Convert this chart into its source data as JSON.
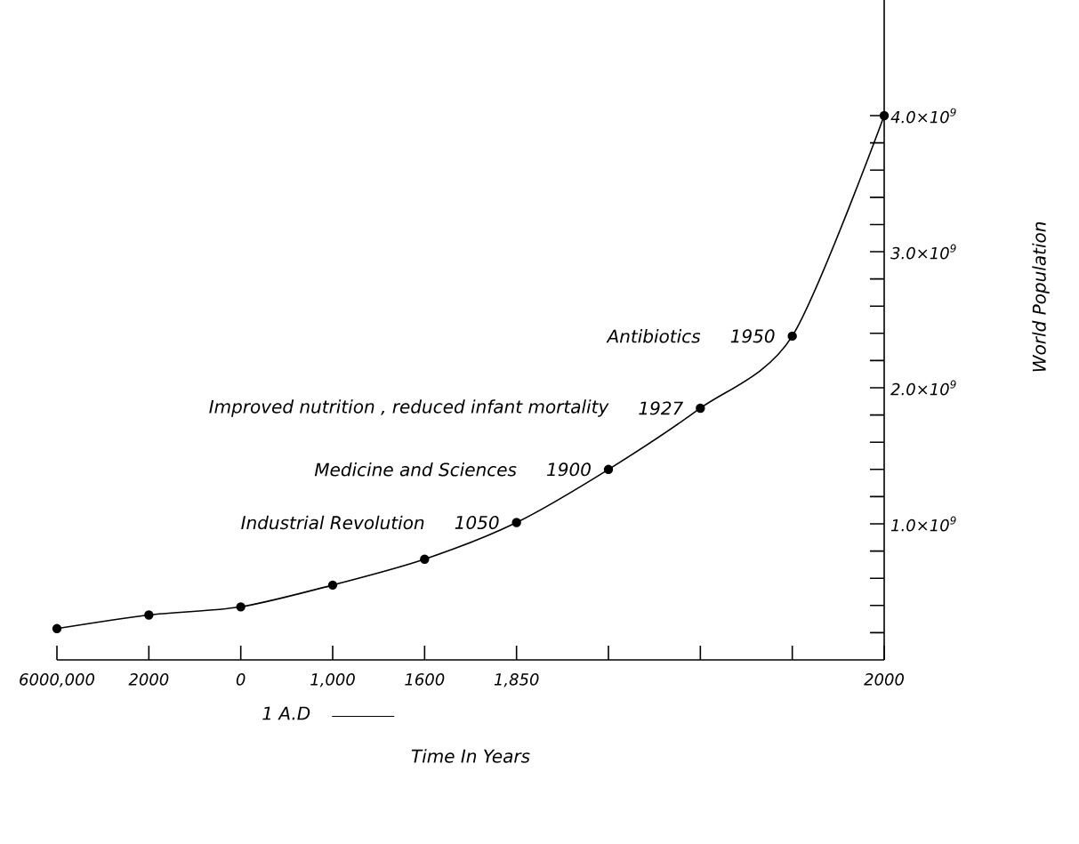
{
  "chart_data": {
    "type": "line",
    "xlabel": "Time In Years",
    "ylabel": "World Population",
    "categories": [
      "6000,000",
      "2000",
      "0",
      "1,000",
      "1600",
      "1,850",
      null,
      null,
      null,
      "2000"
    ],
    "values": [
      230000000,
      330000000,
      390000000,
      550000000,
      740000000,
      1010000000,
      1400000000,
      1850000000,
      2380000000,
      4000000000
    ],
    "color": "#000000",
    "marker": "circle",
    "line_style": "solid",
    "ylim": [
      0,
      4850000000
    ],
    "yticks": [
      {
        "value": 200000000,
        "label": null
      },
      {
        "value": 400000000,
        "label": null
      },
      {
        "value": 600000000,
        "label": null
      },
      {
        "value": 800000000,
        "label": null
      },
      {
        "value": 1000000000,
        "label": "1.0×10$^{9}$"
      },
      {
        "value": 1200000000,
        "label": null
      },
      {
        "value": 1400000000,
        "label": null
      },
      {
        "value": 1600000000,
        "label": null
      },
      {
        "value": 1800000000,
        "label": null
      },
      {
        "value": 2000000000,
        "label": "2.0×10$^{9}$"
      },
      {
        "value": 2200000000,
        "label": null
      },
      {
        "value": 2400000000,
        "label": null
      },
      {
        "value": 2600000000,
        "label": null
      },
      {
        "value": 2800000000,
        "label": null
      },
      {
        "value": 3000000000,
        "label": "3.0×10$^{9}$"
      },
      {
        "value": 3200000000,
        "label": null
      },
      {
        "value": 3400000000,
        "label": null
      },
      {
        "value": 3600000000,
        "label": null
      },
      {
        "value": 3800000000,
        "label": null
      },
      {
        "value": 4000000000,
        "label": "4.0×10$^{9}$"
      }
    ],
    "grid": false,
    "annotations": [
      "1950",
      "1927",
      "1900",
      "1050",
      "Antibiotics",
      "Improved nutrition , reduced infant mortality",
      "Medicine and Sciences",
      "Industrial Revolution",
      "1 A.D"
    ]
  }
}
